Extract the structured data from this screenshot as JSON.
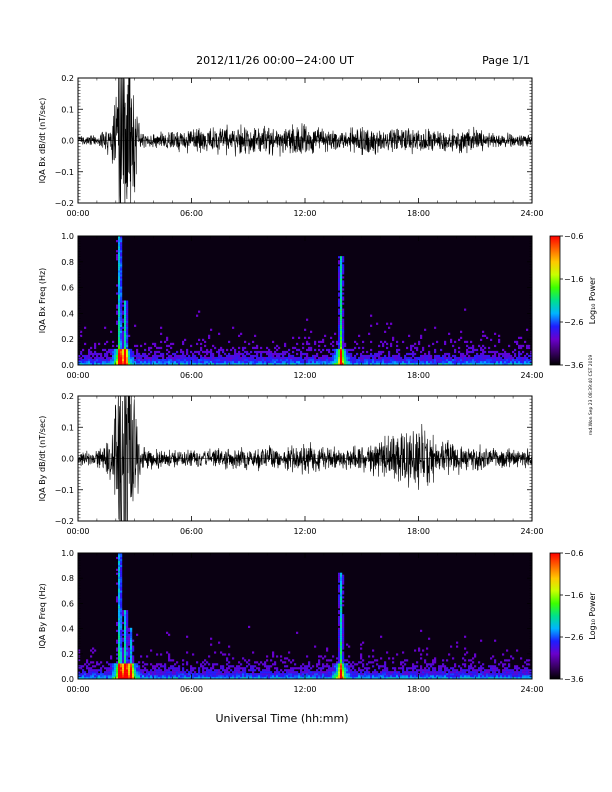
{
  "header": {
    "title": "2012/11/26  00:00−24:00 UT",
    "page": "Page 1/1"
  },
  "footer": {
    "xlabel": "Universal Time (hh:mm)",
    "stamp": "rnd.Won Sep 23 08:39:40 CST 2019"
  },
  "colors": {
    "background": "#ffffff",
    "trace": "#000000",
    "spectrogram_base": "#0a0012",
    "colormap": [
      "#000000",
      "#3a0066",
      "#6a00cc",
      "#1e1eff",
      "#00b4ff",
      "#00e08c",
      "#3cff00",
      "#c8ff00",
      "#ffc800",
      "#ff6400",
      "#ff0000"
    ]
  },
  "chart_data": [
    {
      "type": "line",
      "id": "bx-dbdt",
      "ylabel": "IQA Bx dB/dt (nT/sec)",
      "xlabel": "",
      "x_ticks": [
        "00:00",
        "06:00",
        "12:00",
        "18:00",
        "24:00"
      ],
      "xlim": [
        0,
        24
      ],
      "ylim": [
        -0.2,
        0.2
      ],
      "y_ticks": [
        "0.2",
        "0.1",
        "0.0",
        "−0.1",
        "−0.2"
      ],
      "y_tick_values": [
        0.2,
        0.1,
        0.0,
        -0.1,
        -0.2
      ],
      "series": [
        {
          "x": [
            0,
            1,
            1.8,
            2.2,
            2.5,
            2.9,
            3.3,
            4,
            5,
            6,
            7,
            8,
            9,
            10,
            11,
            12,
            13,
            14,
            15,
            16,
            17,
            18,
            19,
            20,
            21,
            22,
            23,
            24
          ],
          "envelope": [
            0.015,
            0.02,
            0.07,
            0.35,
            0.4,
            0.25,
            0.04,
            0.025,
            0.035,
            0.045,
            0.05,
            0.055,
            0.06,
            0.05,
            0.065,
            0.07,
            0.045,
            0.04,
            0.06,
            0.045,
            0.045,
            0.05,
            0.04,
            0.045,
            0.045,
            0.035,
            0.025,
            0.025
          ]
        }
      ]
    },
    {
      "type": "heatmap",
      "id": "bx-spectrogram",
      "ylabel": "IQA Bx Freq (Hz)",
      "x_ticks": [
        "00:00",
        "06:00",
        "12:00",
        "18:00",
        "24:00"
      ],
      "xlim": [
        0,
        24
      ],
      "ylim": [
        0,
        1.0
      ],
      "y_ticks": [
        "1.0",
        "0.8",
        "0.6",
        "0.4",
        "0.2",
        "0.0"
      ],
      "y_tick_values": [
        1.0,
        0.8,
        0.6,
        0.4,
        0.2,
        0.0
      ],
      "colorbar": {
        "label": "Log₁₀ Power",
        "range": [
          -3.6,
          -0.6
        ],
        "ticks": [
          "−0.6",
          "−1.6",
          "−2.6",
          "−3.6"
        ],
        "tick_values": [
          -0.6,
          -1.6,
          -2.6,
          -3.6
        ]
      },
      "features": [
        {
          "time": 2.2,
          "max_freq": 1.0,
          "strength": 0.6
        },
        {
          "time": 2.5,
          "max_freq": 0.5,
          "strength": 0.5
        },
        {
          "time": 13.9,
          "max_freq": 0.85,
          "strength": 0.55
        }
      ]
    },
    {
      "type": "line",
      "id": "by-dbdt",
      "ylabel": "IQA By dB/dt (nT/sec)",
      "xlabel": "",
      "x_ticks": [
        "00:00",
        "06:00",
        "12:00",
        "18:00",
        "24:00"
      ],
      "xlim": [
        0,
        24
      ],
      "ylim": [
        -0.2,
        0.2
      ],
      "y_ticks": [
        "0.2",
        "0.1",
        "0.0",
        "−0.1",
        "−0.2"
      ],
      "y_tick_values": [
        0.2,
        0.1,
        0.0,
        -0.1,
        -0.2
      ],
      "series": [
        {
          "x": [
            0,
            1,
            1.8,
            2.2,
            2.5,
            2.9,
            3.3,
            4,
            5,
            6,
            7,
            8,
            9,
            10,
            11,
            12,
            13,
            14,
            15,
            16,
            17,
            18,
            19,
            20,
            21,
            22,
            23,
            24
          ],
          "envelope": [
            0.025,
            0.03,
            0.09,
            0.35,
            0.4,
            0.3,
            0.06,
            0.035,
            0.03,
            0.035,
            0.035,
            0.04,
            0.04,
            0.045,
            0.045,
            0.06,
            0.045,
            0.04,
            0.045,
            0.07,
            0.11,
            0.13,
            0.07,
            0.06,
            0.05,
            0.04,
            0.035,
            0.035
          ]
        }
      ]
    },
    {
      "type": "heatmap",
      "id": "by-spectrogram",
      "ylabel": "IQA By Freq (Hz)",
      "x_ticks": [
        "00:00",
        "06:00",
        "12:00",
        "18:00",
        "24:00"
      ],
      "xlim": [
        0,
        24
      ],
      "ylim": [
        0,
        1.0
      ],
      "y_ticks": [
        "1.0",
        "0.8",
        "0.6",
        "0.4",
        "0.2",
        "0.0"
      ],
      "y_tick_values": [
        1.0,
        0.8,
        0.6,
        0.4,
        0.2,
        0.0
      ],
      "colorbar": {
        "label": "Log₁₀ Power",
        "range": [
          -3.6,
          -0.6
        ],
        "ticks": [
          "−0.6",
          "−1.6",
          "−2.6",
          "−3.6"
        ],
        "tick_values": [
          -0.6,
          -1.6,
          -2.6,
          -3.6
        ]
      },
      "features": [
        {
          "time": 2.2,
          "max_freq": 1.0,
          "strength": 0.6
        },
        {
          "time": 2.5,
          "max_freq": 0.55,
          "strength": 0.5
        },
        {
          "time": 2.8,
          "max_freq": 0.4,
          "strength": 0.35
        },
        {
          "time": 13.9,
          "max_freq": 0.85,
          "strength": 0.5
        }
      ]
    }
  ]
}
